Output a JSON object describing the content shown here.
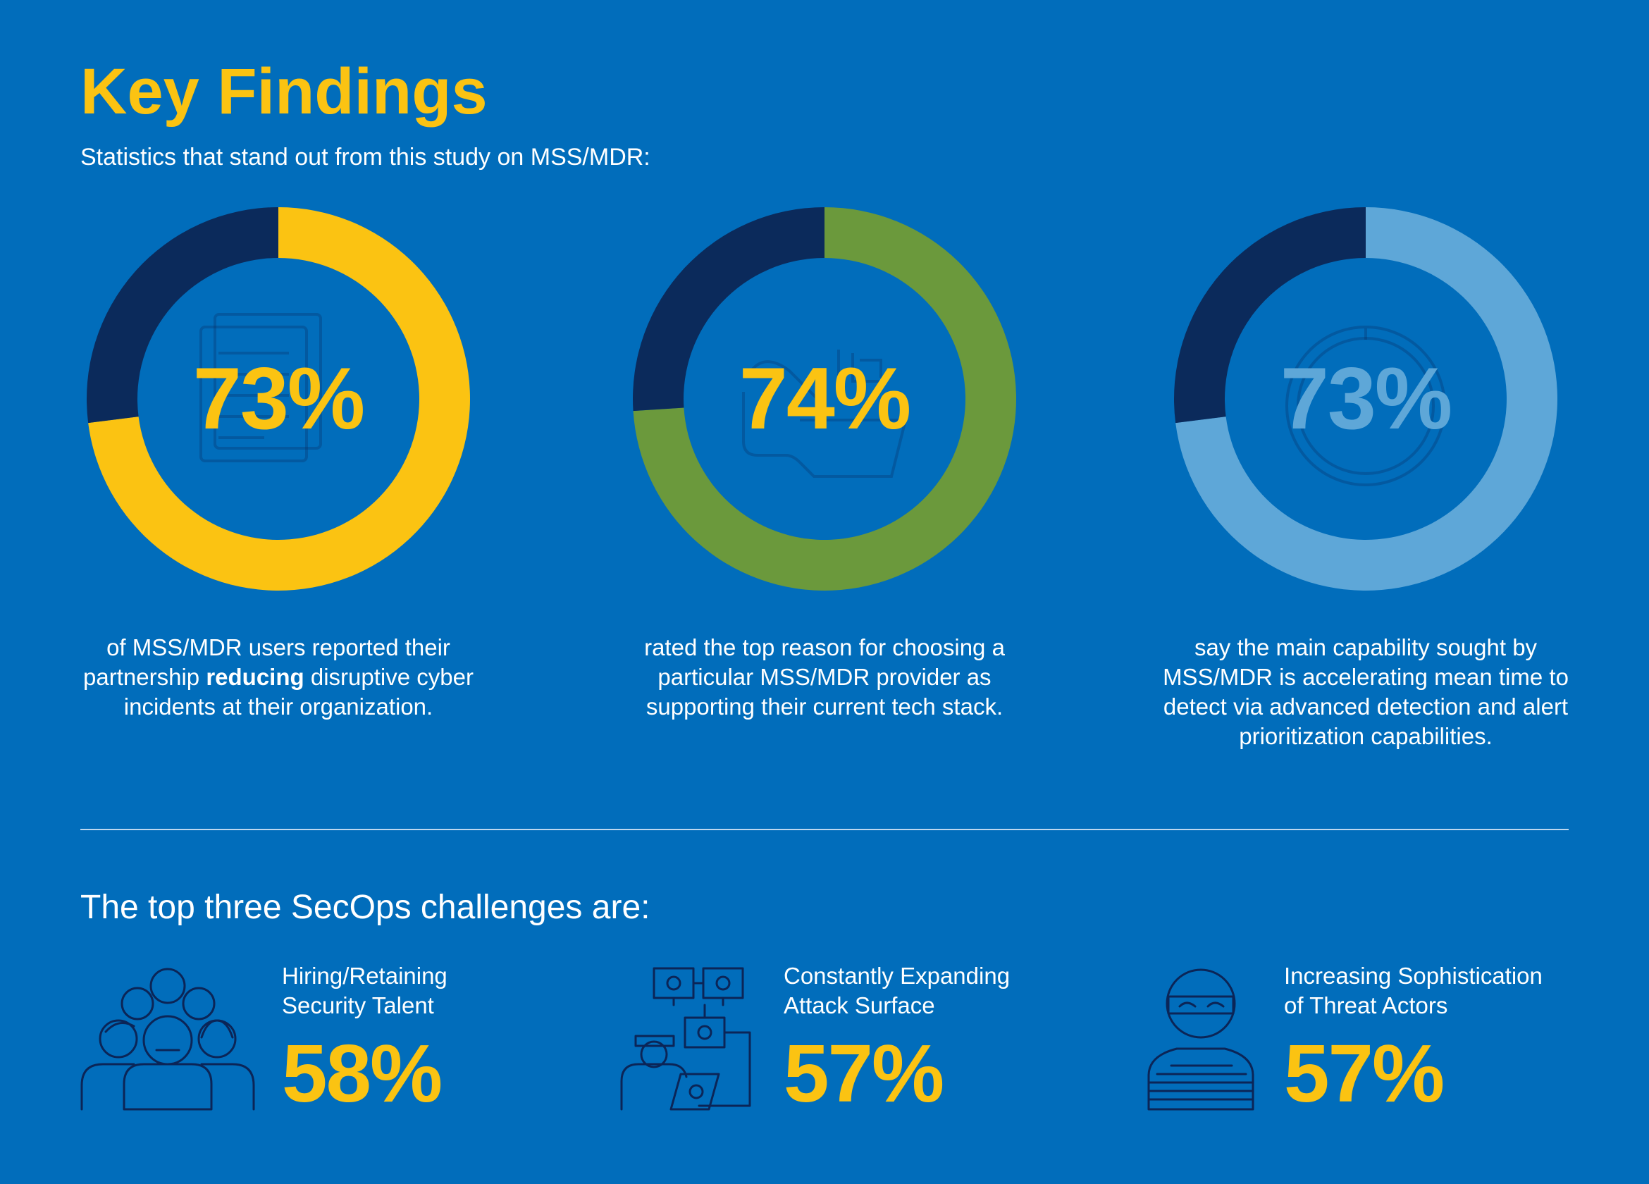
{
  "header": {
    "title": "Key Findings",
    "subtitle": "Statistics that stand out from this study on MSS/MDR:"
  },
  "chart_data": [
    {
      "type": "pie",
      "values": [
        73,
        27
      ],
      "value_label": "73%",
      "caption_pre": "of MSS/MDR users reported their partnership ",
      "caption_bold": "reducing",
      "caption_post": " disruptive cyber incidents at their organization.",
      "colors": {
        "highlight": "#fbc312",
        "remainder": "#0b2a5b",
        "value_text": "#fbc312"
      },
      "icon": "document-icon"
    },
    {
      "type": "pie",
      "values": [
        74,
        26
      ],
      "value_label": "74%",
      "caption_pre": "rated the top reason for choosing a particular MSS/MDR provider as supporting their current tech stack.",
      "caption_bold": "",
      "caption_post": "",
      "colors": {
        "highlight": "#6b993c",
        "remainder": "#0b2a5b",
        "value_text": "#fbc312"
      },
      "icon": "handshake-icon"
    },
    {
      "type": "pie",
      "values": [
        73,
        27
      ],
      "value_label": "73%",
      "caption_pre": "say the main capability sought by MSS/MDR is accelerating mean time to detect via advanced detection and alert prioritization capabilities.",
      "caption_bold": "",
      "caption_post": "",
      "colors": {
        "highlight": "#5ea7d8",
        "remainder": "#0b2a5b",
        "value_text": "#5ea7d8"
      },
      "icon": "stopwatch-icon"
    }
  ],
  "challenges": {
    "title": "The top three SecOps challenges are:",
    "items": [
      {
        "label_line1": "Hiring/Retaining",
        "label_line2": "Security Talent",
        "value": "58%",
        "icon": "people-group-icon"
      },
      {
        "label_line1": "Constantly Expanding",
        "label_line2": "Attack Surface",
        "value": "57%",
        "icon": "network-bug-icon"
      },
      {
        "label_line1": "Increasing Sophistication",
        "label_line2": "of Threat Actors",
        "value": "57%",
        "icon": "masked-thief-icon"
      }
    ]
  },
  "colors": {
    "background": "#016dbb",
    "accent": "#fbc312",
    "icon_stroke": "#0b2557"
  }
}
